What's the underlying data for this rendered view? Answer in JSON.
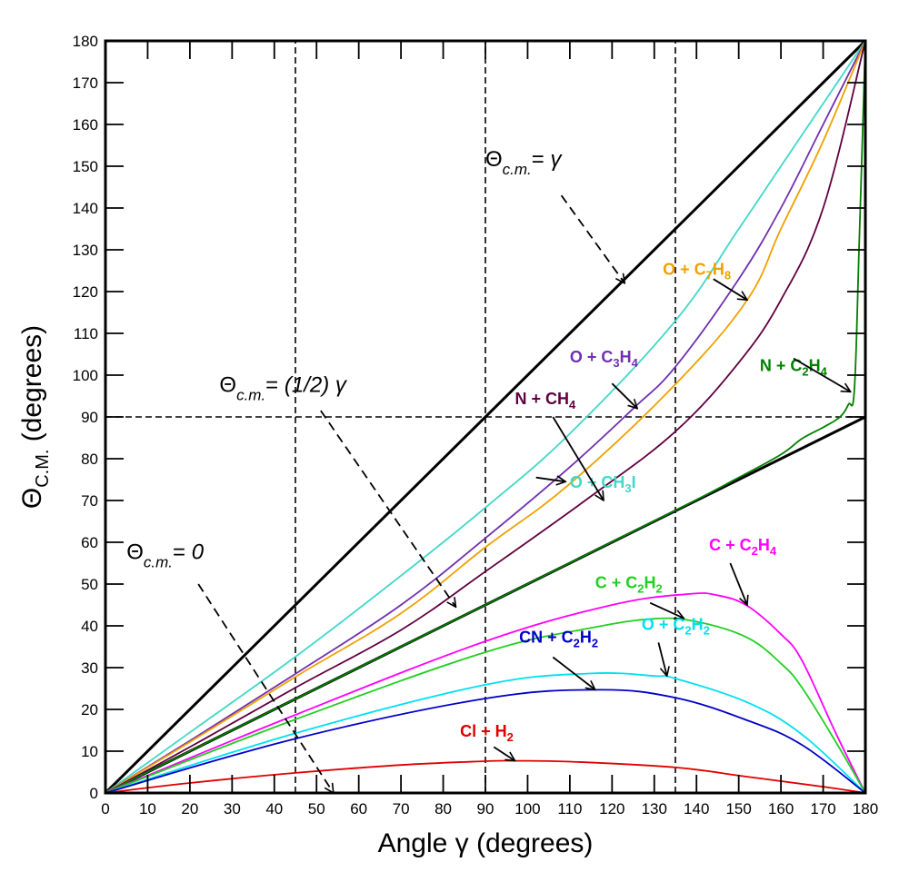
{
  "chart_data": {
    "type": "line",
    "title": "",
    "xlabel": "Angle γ (degrees)",
    "ylabel": {
      "theta": "Θ",
      "sub": "C.M.",
      "rest": " (degrees)"
    },
    "xlim": [
      0,
      180
    ],
    "ylim": [
      0,
      180
    ],
    "xticks": [
      0,
      10,
      20,
      30,
      40,
      50,
      60,
      70,
      80,
      90,
      100,
      110,
      120,
      130,
      140,
      150,
      160,
      170,
      180
    ],
    "yticks": [
      0,
      10,
      20,
      30,
      40,
      50,
      60,
      70,
      80,
      90,
      100,
      110,
      120,
      130,
      140,
      150,
      160,
      170,
      180
    ],
    "grid": false,
    "legend": "none (inline labels with arrows)",
    "reference_lines": [
      {
        "name": "theta-equals-gamma",
        "points": [
          [
            0,
            0
          ],
          [
            180,
            180
          ]
        ],
        "style": "solid-thick",
        "color": "#000000"
      },
      {
        "name": "theta-equals-half-gamma",
        "points": [
          [
            0,
            0
          ],
          [
            180,
            90
          ]
        ],
        "style": "solid-thick",
        "color": "#000000"
      },
      {
        "name": "vline-45",
        "points": [
          [
            45,
            0
          ],
          [
            45,
            180
          ]
        ],
        "style": "dashed",
        "color": "#000000"
      },
      {
        "name": "vline-90",
        "points": [
          [
            90,
            0
          ],
          [
            90,
            180
          ]
        ],
        "style": "dashed",
        "color": "#000000"
      },
      {
        "name": "vline-135",
        "points": [
          [
            135,
            0
          ],
          [
            135,
            180
          ]
        ],
        "style": "dashed",
        "color": "#000000"
      },
      {
        "name": "hline-90",
        "points": [
          [
            0,
            90
          ],
          [
            180,
            90
          ]
        ],
        "style": "dashed",
        "color": "#000000"
      }
    ],
    "series": [
      {
        "name": "O + CH3I",
        "label": {
          "main": "O + CH",
          "sub": "3",
          "tail": "I"
        },
        "color": "#40D8C8",
        "x": [
          0,
          20,
          45,
          70,
          90,
          110,
          135,
          150,
          160,
          170,
          180
        ],
        "y": [
          0,
          14.5,
          32.6,
          52,
          68.3,
          86,
          113,
          135,
          150,
          165,
          180
        ],
        "label_at": [
          110,
          73
        ],
        "arrow_from": [
          102,
          75.5
        ],
        "arrow_to": [
          109,
          74.5
        ]
      },
      {
        "name": "O + C3H4",
        "label": {
          "main": "O + C",
          "sub": "3",
          "tail": "H",
          "sub2": "4"
        },
        "color": "#7030B0",
        "x": [
          0,
          20,
          45,
          70,
          90,
          110,
          125,
          135,
          150,
          160,
          170,
          180
        ],
        "y": [
          0,
          12.5,
          28.5,
          45,
          61,
          78,
          92,
          102,
          123,
          140,
          160,
          180
        ],
        "label_at": [
          110,
          103
        ],
        "arrow_from": [
          120,
          98
        ],
        "arrow_to": [
          126,
          92
        ]
      },
      {
        "name": "O + C7H8",
        "label": {
          "main": "O + C",
          "sub": "7",
          "tail": "H",
          "sub2": "8"
        },
        "color": "#F0A000",
        "x": [
          0,
          20,
          45,
          70,
          90,
          110,
          135,
          152,
          160,
          170,
          180
        ],
        "y": [
          0,
          12.2,
          27.8,
          43,
          58.8,
          74,
          97.8,
          118,
          135,
          156,
          180
        ],
        "label_at": [
          132,
          124
        ],
        "arrow_from": [
          144,
          123
        ],
        "arrow_to": [
          152,
          118
        ]
      },
      {
        "name": "N + CH4",
        "label": {
          "main": "N + CH",
          "sub": "4",
          "tail": ""
        },
        "color": "#600040",
        "x": [
          0,
          20,
          45,
          70,
          90,
          115,
          135,
          150,
          160,
          170,
          180
        ],
        "y": [
          0,
          11,
          25.2,
          39,
          53,
          71,
          86.5,
          103,
          118,
          140,
          180
        ],
        "label_at": [
          97,
          93
        ],
        "arrow_from": [
          106,
          90
        ],
        "arrow_to": [
          118,
          70
        ]
      },
      {
        "name": "N + C2H4",
        "label": {
          "main": "N + C",
          "sub": "2",
          "tail": "H",
          "sub2": "4"
        },
        "color": "#008000",
        "x": [
          0,
          90,
          135,
          150,
          160,
          165,
          170,
          174,
          176,
          177.4,
          178.5,
          180
        ],
        "y": [
          0,
          45,
          67.6,
          75.5,
          81,
          84.8,
          87.5,
          90,
          93,
          96.5,
          130,
          180
        ],
        "label_at": [
          155,
          101
        ],
        "arrow_from": [
          163,
          104
        ],
        "arrow_to": [
          176.5,
          96
        ]
      },
      {
        "name": "C + C2H4",
        "label": {
          "main": "C + C",
          "sub": "2",
          "tail": "H",
          "sub2": "4"
        },
        "color": "#FF00FF",
        "x": [
          0,
          45,
          90,
          120,
          138,
          145,
          152,
          160,
          165,
          173,
          180
        ],
        "y": [
          0,
          18.7,
          36.3,
          45,
          47.6,
          47.3,
          44.8,
          38,
          31.7,
          14.3,
          0
        ],
        "label_at": [
          143,
          58
        ],
        "arrow_from": [
          148,
          55
        ],
        "arrow_to": [
          152,
          45
        ]
      },
      {
        "name": "C + C2H2",
        "label": {
          "main": "C + C",
          "sub": "2",
          "tail": "H",
          "sub2": "2"
        },
        "color": "#20D020",
        "x": [
          0,
          45,
          90,
          115,
          130,
          140,
          152,
          160,
          165,
          173,
          180
        ],
        "y": [
          0,
          17.6,
          33.7,
          39.5,
          41.7,
          41,
          37.2,
          31,
          25.2,
          12.2,
          0
        ],
        "label_at": [
          116,
          49
        ],
        "arrow_from": [
          129,
          45.5
        ],
        "arrow_to": [
          137,
          41.8
        ]
      },
      {
        "name": "O + C2H2",
        "label": {
          "main": "O + C",
          "sub": "2",
          "tail": "H",
          "sub2": "2"
        },
        "color": "#00E0F0",
        "x": [
          0,
          45,
          90,
          115,
          130,
          135,
          152,
          165,
          180
        ],
        "y": [
          0,
          14.3,
          25.9,
          28.6,
          28,
          27.4,
          21.7,
          14,
          0
        ],
        "label_at": [
          127,
          39
        ],
        "arrow_from": [
          131,
          36
        ],
        "arrow_to": [
          133,
          28
        ]
      },
      {
        "name": "CN + C2H2",
        "label": {
          "main": "CN + C",
          "sub": "2",
          "tail": "H",
          "sub2": "2"
        },
        "color": "#0000C8",
        "x": [
          0,
          45,
          90,
          117,
          135,
          152,
          165,
          180
        ],
        "y": [
          0,
          13,
          22.6,
          24.7,
          22.8,
          17.4,
          11.5,
          0
        ],
        "label_at": [
          98,
          36
        ],
        "arrow_from": [
          106,
          32.5
        ],
        "arrow_to": [
          116,
          24.7
        ]
      },
      {
        "name": "Cl + H2",
        "label": {
          "main": "Cl + H",
          "sub": "2",
          "tail": ""
        },
        "color": "#E00000",
        "x": [
          0,
          20,
          45,
          70,
          90,
          97,
          110,
          135,
          152,
          170,
          180
        ],
        "y": [
          0,
          2.4,
          4.8,
          6.7,
          7.6,
          7.7,
          7.5,
          6.1,
          3.9,
          1.5,
          0
        ],
        "label_at": [
          84,
          13.5
        ],
        "arrow_from": [
          92,
          11
        ],
        "arrow_to": [
          97,
          7.7
        ]
      }
    ],
    "annotations": [
      {
        "name": "annotation-theta-equals-gamma",
        "theta": "Θ",
        "sub": "c.m.",
        "eq": "= ",
        "rhs": "γ",
        "label_at": [
          90,
          150
        ],
        "arrow_from": [
          108,
          143
        ],
        "arrow_to": [
          123,
          122
        ]
      },
      {
        "name": "annotation-theta-equals-half-gamma",
        "theta": "Θ",
        "sub": "c.m.",
        "eq": "= ",
        "rhs": "(1/2) γ",
        "label_at": [
          27,
          96
        ],
        "arrow_from": [
          51,
          91.5
        ],
        "arrow_to": [
          83,
          44.5
        ]
      },
      {
        "name": "annotation-theta-equals-zero",
        "theta": "Θ",
        "sub": "c.m.",
        "eq": "= ",
        "rhs": "0",
        "label_at": [
          5,
          56
        ],
        "arrow_from": [
          22,
          50
        ],
        "arrow_to": [
          54,
          0
        ]
      }
    ]
  }
}
